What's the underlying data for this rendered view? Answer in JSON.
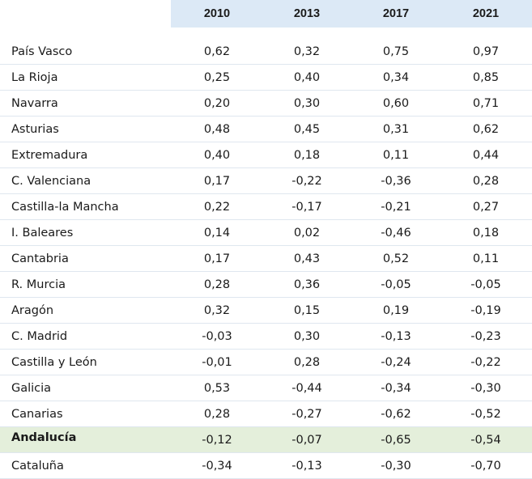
{
  "table": {
    "columns": [
      "2010",
      "2013",
      "2017",
      "2021"
    ],
    "rows": [
      {
        "name": "País Vasco",
        "values": [
          "0,62",
          "0,32",
          "0,75",
          "0,97"
        ]
      },
      {
        "name": "La Rioja",
        "values": [
          "0,25",
          "0,40",
          "0,34",
          "0,85"
        ]
      },
      {
        "name": "Navarra",
        "values": [
          "0,20",
          "0,30",
          "0,60",
          "0,71"
        ]
      },
      {
        "name": "Asturias",
        "values": [
          "0,48",
          "0,45",
          "0,31",
          "0,62"
        ]
      },
      {
        "name": "Extremadura",
        "values": [
          "0,40",
          "0,18",
          "0,11",
          "0,44"
        ]
      },
      {
        "name": "C. Valenciana",
        "values": [
          "0,17",
          "-0,22",
          "-0,36",
          "0,28"
        ]
      },
      {
        "name": "Castilla-la Mancha",
        "values": [
          "0,22",
          "-0,17",
          "-0,21",
          "0,27"
        ]
      },
      {
        "name": "I. Baleares",
        "values": [
          "0,14",
          "0,02",
          "-0,46",
          "0,18"
        ]
      },
      {
        "name": "Cantabria",
        "values": [
          "0,17",
          "0,43",
          "0,52",
          "0,11"
        ]
      },
      {
        "name": "R. Murcia",
        "values": [
          "0,28",
          "0,36",
          "-0,05",
          "-0,05"
        ]
      },
      {
        "name": "Aragón",
        "values": [
          "0,32",
          "0,15",
          "0,19",
          "-0,19"
        ]
      },
      {
        "name": "C. Madrid",
        "values": [
          "-0,03",
          "0,30",
          "-0,13",
          "-0,23"
        ]
      },
      {
        "name": "Castilla y León",
        "values": [
          "-0,01",
          "0,28",
          "-0,24",
          "-0,22"
        ]
      },
      {
        "name": "Galicia",
        "values": [
          "0,53",
          "-0,44",
          "-0,34",
          "-0,30"
        ]
      },
      {
        "name": "Canarias",
        "values": [
          "0,28",
          "-0,27",
          "-0,62",
          "-0,52"
        ]
      },
      {
        "name": "Andalucía",
        "values": [
          "-0,12",
          "-0,07",
          "-0,65",
          "-0,54"
        ],
        "highlight": true
      },
      {
        "name": "Cataluña",
        "values": [
          "-0,34",
          "-0,13",
          "-0,30",
          "-0,70"
        ]
      }
    ]
  },
  "colors": {
    "header_background": "#dce9f6",
    "highlight_background": "#e4efdb",
    "row_divider": "#dfe7ef"
  }
}
